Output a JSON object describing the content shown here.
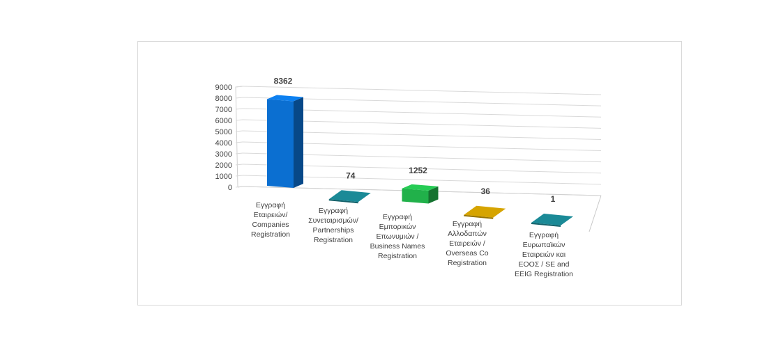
{
  "chart_data": {
    "type": "bar",
    "title": "",
    "xlabel": "",
    "ylabel": "",
    "ylim": [
      0,
      9000
    ],
    "y_ticks": [
      "0",
      "1000",
      "2000",
      "3000",
      "4000",
      "5000",
      "6000",
      "7000",
      "8000",
      "9000"
    ],
    "categories": [
      [
        "Εγγραφή",
        "Εταιρειών/",
        "Companies",
        "Registration"
      ],
      [
        "Εγγραφή",
        "Συνεταιρισμών/",
        "Partnerships",
        "Registration"
      ],
      [
        "Εγγραφή",
        "Εμπορικών",
        "Επωνυμιών /",
        "Business Names",
        "Registration"
      ],
      [
        "Εγγραφή",
        "Αλλοδαπών",
        "Εταιρειών /",
        "Overseas Co",
        "Registration"
      ],
      [
        "Εγγραφή",
        "Ευρωπαϊκών",
        "Εταιρειών και",
        "ΕΟΟΣ / SE and",
        "EEIG Registration"
      ]
    ],
    "values": [
      8362,
      74,
      1252,
      36,
      1
    ],
    "data_labels": [
      "8362",
      "74",
      "1252",
      "36",
      "1"
    ],
    "colors": [
      "#0b6fd1",
      "#1b8a97",
      "#21b14a",
      "#d6a400",
      "#1b8a97"
    ],
    "grid": true,
    "legend": "none",
    "style": "3d"
  }
}
